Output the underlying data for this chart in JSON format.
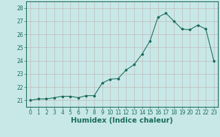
{
  "x": [
    0,
    1,
    2,
    3,
    4,
    5,
    6,
    7,
    8,
    9,
    10,
    11,
    12,
    13,
    14,
    15,
    16,
    17,
    18,
    19,
    20,
    21,
    22,
    23
  ],
  "y": [
    21.0,
    21.1,
    21.1,
    21.2,
    21.3,
    21.3,
    21.2,
    21.35,
    21.35,
    22.3,
    22.6,
    22.65,
    23.3,
    23.7,
    24.5,
    25.5,
    27.3,
    27.6,
    27.0,
    26.4,
    26.35,
    26.7,
    26.4,
    24.0
  ],
  "xlabel": "Humidex (Indice chaleur)",
  "xlim": [
    -0.5,
    23.5
  ],
  "ylim": [
    20.5,
    28.5
  ],
  "yticks": [
    21,
    22,
    23,
    24,
    25,
    26,
    27,
    28
  ],
  "xticks": [
    0,
    1,
    2,
    3,
    4,
    5,
    6,
    7,
    8,
    9,
    10,
    11,
    12,
    13,
    14,
    15,
    16,
    17,
    18,
    19,
    20,
    21,
    22,
    23
  ],
  "line_color": "#1a6b5a",
  "marker": "*",
  "marker_size": 2.5,
  "bg_color": "#c8e8e8",
  "grid_color_v": "#c0b8b8",
  "grid_color_h": "#c0b8b8",
  "axes_bg_color": "#c8e8e8",
  "tick_color": "#1a6b5a",
  "label_color": "#1a6b5a",
  "xlabel_fontsize": 7.5,
  "tick_fontsize": 5.5
}
